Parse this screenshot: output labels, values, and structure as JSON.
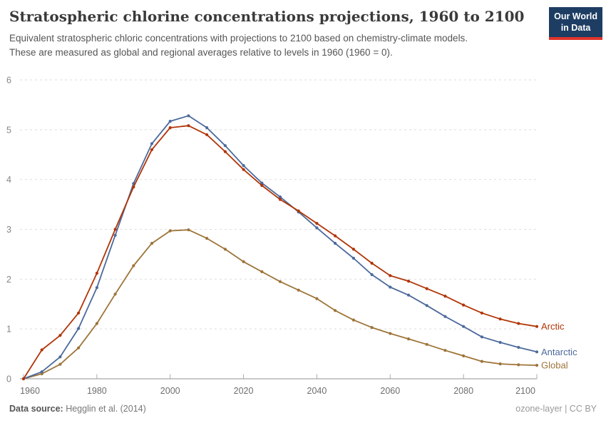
{
  "header": {
    "title": "Stratospheric chlorine concentrations projections, 1960 to 2100",
    "subtitle_line1": "Equivalent stratospheric chloric concentrations with projections to 2100 based on chemistry-climate models.",
    "subtitle_line2": "These are measured as global and regional averages relative to levels in 1960 (1960 = 0)."
  },
  "logo": {
    "line1": "Our World",
    "line2": "in Data",
    "bg_color": "#1d3d63",
    "accent_color": "#e0352b"
  },
  "footer": {
    "source_label": "Data source:",
    "source_value": " Hegglin et al. (2014)",
    "attribution": "ozone-layer | CC BY"
  },
  "chart_data": {
    "type": "line",
    "title": "Stratospheric chlorine concentrations projections, 1960 to 2100",
    "xlabel": "",
    "ylabel": "",
    "xlim": [
      1960,
      2100
    ],
    "ylim": [
      0,
      6
    ],
    "x_ticks": [
      1960,
      1980,
      2000,
      2020,
      2040,
      2060,
      2080,
      2100
    ],
    "y_ticks": [
      0,
      1,
      2,
      3,
      4,
      5,
      6
    ],
    "grid": "horizontal-dashed",
    "legend_position": "line-end-labels",
    "x": [
      1960,
      1965,
      1970,
      1975,
      1980,
      1985,
      1990,
      1995,
      2000,
      2005,
      2010,
      2015,
      2020,
      2025,
      2030,
      2035,
      2040,
      2045,
      2050,
      2055,
      2060,
      2065,
      2070,
      2075,
      2080,
      2085,
      2090,
      2095,
      2100
    ],
    "series": [
      {
        "name": "Global",
        "color": "#9E7439",
        "values": [
          0,
          0.1,
          0.29,
          0.62,
          1.11,
          1.7,
          2.27,
          2.72,
          2.97,
          2.99,
          2.82,
          2.6,
          2.35,
          2.15,
          1.95,
          1.78,
          1.61,
          1.37,
          1.18,
          1.03,
          0.91,
          0.8,
          0.69,
          0.57,
          0.46,
          0.35,
          0.3,
          0.28,
          0.27
        ]
      },
      {
        "name": "Antarctic",
        "color": "#4C6A9C",
        "values": [
          0,
          0.14,
          0.44,
          1.01,
          1.83,
          2.88,
          3.92,
          4.72,
          5.17,
          5.28,
          5.04,
          4.68,
          4.28,
          3.93,
          3.65,
          3.35,
          3.03,
          2.72,
          2.42,
          2.09,
          1.84,
          1.68,
          1.47,
          1.25,
          1.05,
          0.84,
          0.73,
          0.63,
          0.54
        ]
      },
      {
        "name": "Arctic",
        "color": "#B13507",
        "values": [
          0,
          0.58,
          0.87,
          1.32,
          2.12,
          3.0,
          3.85,
          4.6,
          5.04,
          5.08,
          4.9,
          4.56,
          4.2,
          3.88,
          3.6,
          3.37,
          3.12,
          2.87,
          2.6,
          2.32,
          2.07,
          1.96,
          1.81,
          1.66,
          1.48,
          1.32,
          1.2,
          1.11,
          1.05
        ]
      }
    ],
    "axis_colors": {
      "grid": "#dedede",
      "axis_line": "#919191",
      "tick": "#ababab",
      "tick_label": "#6e6e6e",
      "y_label": "#858585"
    }
  }
}
